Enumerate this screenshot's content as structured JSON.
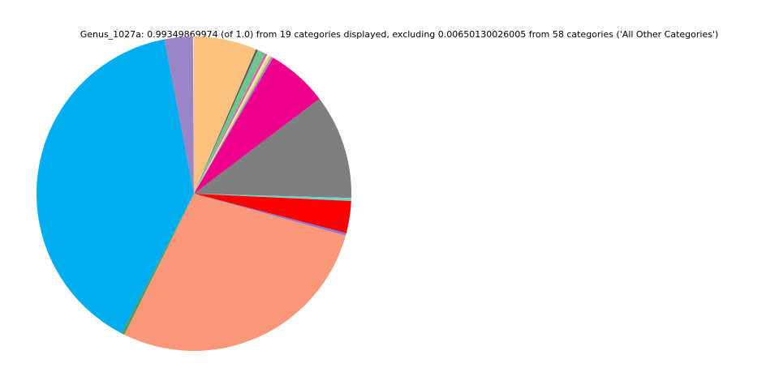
{
  "chart_data": {
    "type": "pie",
    "title": "Genus_1027a: 0.99349869974 (of 1.0) from 19 categories displayed, excluding 0.00650130026005 from 58 categories ('All Other Categories')",
    "displayed_total": 0.99349869974,
    "excluded_total": 0.00650130026005,
    "categories_displayed": 19,
    "total_categories": 58,
    "excluded_label": "All Other Categories",
    "legend": "none",
    "slice_labels_visible": false,
    "start_angle": "12-o-clock",
    "direction": "clockwise",
    "background_color": "#ffffff",
    "slices": [
      {
        "color": "#FBC17E",
        "color_name": "peach-orange",
        "value": 0.0641
      },
      {
        "color": "#5A5A52",
        "color_name": "dark-gray-sliver",
        "value": 0.002
      },
      {
        "color": "#6FC591",
        "color_name": "medium-green",
        "value": 0.0084
      },
      {
        "color": "#F0559E",
        "color_name": "pink-sliver",
        "value": 0.0022
      },
      {
        "color": "#F2EBD5",
        "color_name": "cream-sliver",
        "value": 0.0022
      },
      {
        "color": "#EFD34E",
        "color_name": "yellow-sliver",
        "value": 0.0022
      },
      {
        "color": "#8F8FD8",
        "color_name": "periwinkle-sliver",
        "value": 0.0022
      },
      {
        "color": "#EC008C",
        "color_name": "magenta",
        "value": 0.0626
      },
      {
        "color": "#7F7F7F",
        "color_name": "gray",
        "value": 0.1068
      },
      {
        "color": "#64D8D2",
        "color_name": "turquoise-sliver",
        "value": 0.003
      },
      {
        "color": "#FE0000",
        "color_name": "red",
        "value": 0.0328
      },
      {
        "color": "#8878E0",
        "color_name": "violet-sliver",
        "value": 0.0025
      },
      {
        "color": "#F89779",
        "color_name": "salmon",
        "value": 0.2782
      },
      {
        "color": "#4E9E57",
        "color_name": "olive-green-sliver",
        "value": 0.003
      },
      {
        "color": "#00AEEF",
        "color_name": "vivid-sky-blue",
        "value": 0.3915
      },
      {
        "color": "#9C85C6",
        "color_name": "lavender-purple",
        "value": 0.0288
      },
      {
        "color": "#C8C8C8",
        "color_name": "sub-pixel-sliver",
        "value": 0.0004
      },
      {
        "color": "#D8D8D8",
        "color_name": "sub-pixel-sliver",
        "value": 0.0003
      },
      {
        "color": "#E8E8E8",
        "color_name": "sub-pixel-sliver",
        "value": 0.0003
      }
    ]
  }
}
